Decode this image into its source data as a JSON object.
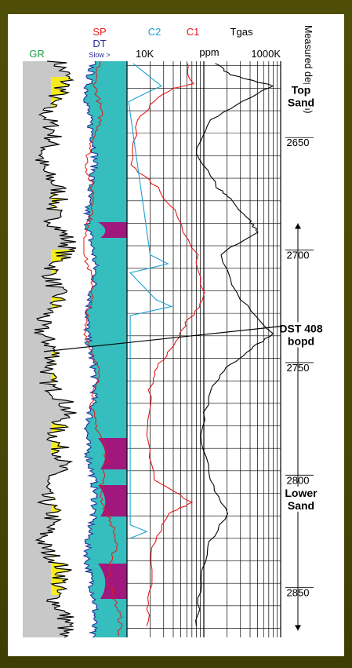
{
  "chart_data": {
    "type": "line",
    "title": "",
    "tracks": [
      {
        "name": "GR",
        "color": "#1aa04a"
      },
      {
        "name": "SP",
        "color": "#e21a1a"
      },
      {
        "name": "DT",
        "color": "#2a2a9a",
        "note": "Slow >"
      },
      {
        "name": "C2",
        "color": "#1aa0d2"
      },
      {
        "name": "C1",
        "color": "#e21a1a"
      },
      {
        "name": "Tgas",
        "color": "#000000"
      }
    ],
    "gas_scale": {
      "units": "ppm",
      "min_label": "10K",
      "max_label": "1000K",
      "scale": "log"
    },
    "depth_axis": {
      "label": "Measured depth (m)",
      "range": [
        2614,
        2870
      ],
      "ticks": [
        2650,
        2700,
        2750,
        2800,
        2850
      ]
    },
    "annotations": [
      {
        "text": "Top Sand",
        "depth": 2632
      },
      {
        "text": "DST 408 bopd",
        "depth": 2738
      },
      {
        "text": "Lower Sand",
        "depth": 2811
      }
    ],
    "dst_interval": [
      2686,
      2867
    ],
    "series": [
      {
        "name": "C1",
        "depth": [
          2615,
          2624,
          2626,
          2630,
          2640,
          2660,
          2670,
          2680,
          2700,
          2720,
          2730,
          2740,
          2750,
          2760,
          2780,
          2800,
          2810,
          2815,
          2830,
          2850,
          2865
        ],
        "value_ppm": [
          60000,
          70000,
          40000,
          25000,
          14000,
          11000,
          25000,
          40000,
          80000,
          100000,
          60000,
          40000,
          25000,
          20000,
          18000,
          22000,
          70000,
          35000,
          22000,
          20000,
          18000
        ]
      },
      {
        "name": "Tgas",
        "depth": [
          2615,
          2620,
          2625,
          2630,
          2640,
          2655,
          2670,
          2675,
          2685,
          2690,
          2700,
          2720,
          2735,
          2742,
          2750,
          2760,
          2780,
          2800,
          2815,
          2830,
          2850,
          2865
        ],
        "value_ppm": [
          140000,
          220000,
          800000,
          400000,
          120000,
          80000,
          150000,
          220000,
          400000,
          500000,
          160000,
          300000,
          800000,
          400000,
          200000,
          120000,
          90000,
          120000,
          200000,
          110000,
          90000,
          80000
        ]
      },
      {
        "name": "C2",
        "depth": [
          2615,
          2625,
          2628,
          2632,
          2700,
          2704,
          2708,
          2720,
          2723,
          2727,
          2820,
          2823,
          2826
        ],
        "value_ppm": [
          12000,
          28000,
          18000,
          10500,
          20000,
          34000,
          11000,
          24000,
          38000,
          11000,
          11000,
          18000,
          11000
        ]
      }
    ]
  }
}
